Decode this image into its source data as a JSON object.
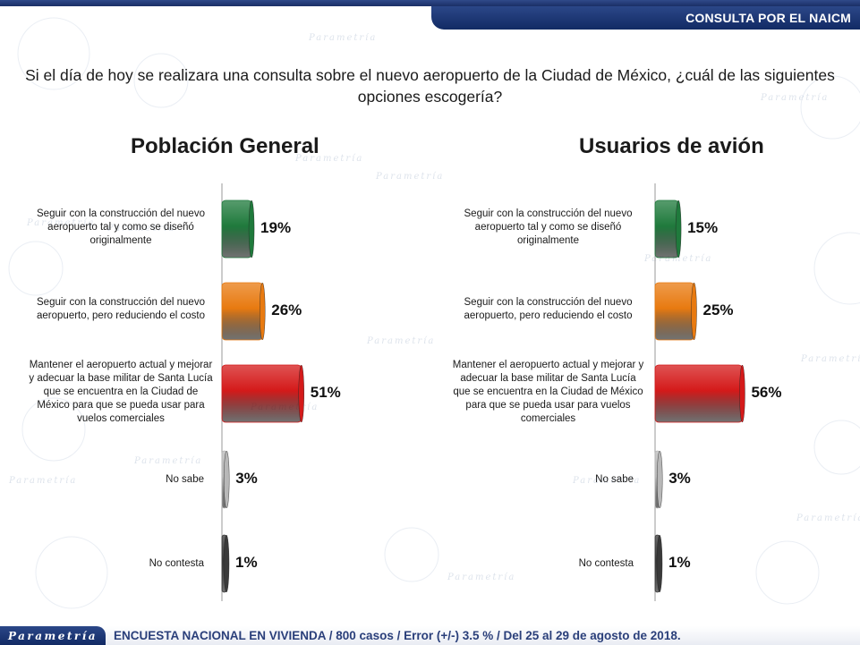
{
  "header": {
    "banner_title": "CONSULTA POR EL NAICM"
  },
  "question": "Si el día de hoy se realizara una consulta sobre el nuevo aeropuerto de la Ciudad de México, ¿cuál de las siguientes opciones escogería?",
  "colors": {
    "bars": [
      "#1f7a3c",
      "#e87a10",
      "#d41a1a",
      "#b8b8b8",
      "#3a3a3a"
    ],
    "brand_blue": "#1e3a7a"
  },
  "watermark": {
    "brand": "Parametría"
  },
  "chart_data": [
    {
      "type": "bar",
      "orientation": "horizontal",
      "title": "Población General",
      "categories": [
        "Seguir con la construcción del nuevo aeropuerto tal y como se diseñó originalmente",
        "Seguir con la construcción del nuevo aeropuerto, pero reduciendo el costo",
        "Mantener el aeropuerto actual y mejorar y adecuar la base militar de Santa Lucía que se encuentra en la Ciudad de México para que se pueda usar para vuelos comerciales",
        "No sabe",
        "No contesta"
      ],
      "values": [
        19,
        26,
        51,
        3,
        1
      ],
      "value_labels": [
        "19%",
        "26%",
        "51%",
        "3%",
        "1%"
      ],
      "xlim": [
        0,
        100
      ]
    },
    {
      "type": "bar",
      "orientation": "horizontal",
      "title": "Usuarios de avión",
      "categories": [
        "Seguir con la construcción del nuevo aeropuerto tal y como se diseñó originalmente",
        "Seguir con la construcción del nuevo aeropuerto, pero reduciendo el costo",
        "Mantener el aeropuerto actual y mejorar y adecuar la base militar de Santa Lucía que se encuentra en la Ciudad de México para que se pueda usar para vuelos comerciales",
        "No sabe",
        "No contesta"
      ],
      "values": [
        15,
        25,
        56,
        3,
        1
      ],
      "value_labels": [
        "15%",
        "25%",
        "56%",
        "3%",
        "1%"
      ],
      "xlim": [
        0,
        100
      ]
    }
  ],
  "footer": {
    "logo": "Parametría",
    "note": "ENCUESTA NACIONAL EN VIVIENDA / 800 casos / Error (+/-) 3.5 % / Del 25 al 29 de agosto de 2018."
  }
}
